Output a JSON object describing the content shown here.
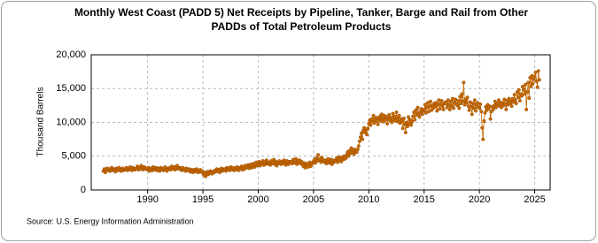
{
  "chart_data": {
    "type": "line",
    "title": [
      "Monthly West Coast (PADD 5) Net Receipts by Pipeline, Tanker, Barge and Rail from Other",
      "PADDs of Total Petroleum Products"
    ],
    "y_label": "Thousand Barrels",
    "source": "Source: U.S. Energy Information Administration",
    "xlim": [
      1984.9,
      2026.4
    ],
    "ylim": [
      0,
      20000
    ],
    "xticks": [
      1990,
      1995,
      2000,
      2005,
      2010,
      2015,
      2020,
      2025
    ],
    "yticks": [
      0,
      {
        "value": 5000,
        "label": "5,000"
      },
      {
        "value": 10000,
        "label": "10,000"
      },
      {
        "value": 15000,
        "label": "15,000"
      },
      {
        "value": 20000,
        "label": "20,000"
      }
    ],
    "grid": true,
    "series": [
      {
        "color": "#c96a00",
        "x": [
          1986.0,
          1986.08,
          1986.17,
          1986.25,
          1986.33,
          1986.42,
          1986.5,
          1986.58,
          1986.67,
          1986.75,
          1986.83,
          1986.92,
          1987.0,
          1987.08,
          1987.17,
          1987.25,
          1987.33,
          1987.42,
          1987.5,
          1987.58,
          1987.67,
          1987.75,
          1987.83,
          1987.92,
          1988.0,
          1988.08,
          1988.17,
          1988.25,
          1988.33,
          1988.42,
          1988.5,
          1988.58,
          1988.67,
          1988.75,
          1988.83,
          1988.92,
          1989.0,
          1989.08,
          1989.17,
          1989.25,
          1989.33,
          1989.42,
          1989.5,
          1989.58,
          1989.67,
          1989.75,
          1989.83,
          1989.92,
          1990.0,
          1990.08,
          1990.17,
          1990.25,
          1990.33,
          1990.42,
          1990.5,
          1990.58,
          1990.67,
          1990.75,
          1990.83,
          1990.92,
          1991.0,
          1991.08,
          1991.17,
          1991.25,
          1991.33,
          1991.42,
          1991.5,
          1991.58,
          1991.67,
          1991.75,
          1991.83,
          1991.92,
          1992.0,
          1992.08,
          1992.17,
          1992.25,
          1992.33,
          1992.42,
          1992.5,
          1992.58,
          1992.67,
          1992.75,
          1992.83,
          1992.92,
          1993.0,
          1993.08,
          1993.17,
          1993.25,
          1993.33,
          1993.42,
          1993.5,
          1993.58,
          1993.67,
          1993.75,
          1993.83,
          1993.92,
          1994.0,
          1994.08,
          1994.17,
          1994.25,
          1994.33,
          1994.42,
          1994.5,
          1994.58,
          1994.67,
          1994.75,
          1994.83,
          1994.92,
          1995.0,
          1995.08,
          1995.17,
          1995.25,
          1995.33,
          1995.42,
          1995.5,
          1995.58,
          1995.67,
          1995.75,
          1995.83,
          1995.92,
          1996.0,
          1996.08,
          1996.17,
          1996.25,
          1996.33,
          1996.42,
          1996.5,
          1996.58,
          1996.67,
          1996.75,
          1996.83,
          1996.92,
          1997.0,
          1997.08,
          1997.17,
          1997.25,
          1997.33,
          1997.42,
          1997.5,
          1997.58,
          1997.67,
          1997.75,
          1997.83,
          1997.92,
          1998.0,
          1998.08,
          1998.17,
          1998.25,
          1998.33,
          1998.42,
          1998.5,
          1998.58,
          1998.67,
          1998.75,
          1998.83,
          1998.92,
          1999.0,
          1999.08,
          1999.17,
          1999.25,
          1999.33,
          1999.42,
          1999.5,
          1999.58,
          1999.67,
          1999.75,
          1999.83,
          1999.92,
          2000.0,
          2000.08,
          2000.17,
          2000.25,
          2000.33,
          2000.42,
          2000.5,
          2000.58,
          2000.67,
          2000.75,
          2000.83,
          2000.92,
          2001.0,
          2001.08,
          2001.17,
          2001.25,
          2001.33,
          2001.42,
          2001.5,
          2001.58,
          2001.67,
          2001.75,
          2001.83,
          2001.92,
          2002.0,
          2002.08,
          2002.17,
          2002.25,
          2002.33,
          2002.42,
          2002.5,
          2002.58,
          2002.67,
          2002.75,
          2002.83,
          2002.92,
          2003.0,
          2003.08,
          2003.17,
          2003.25,
          2003.33,
          2003.42,
          2003.5,
          2003.58,
          2003.67,
          2003.75,
          2003.83,
          2003.92,
          2004.0,
          2004.08,
          2004.17,
          2004.25,
          2004.33,
          2004.42,
          2004.5,
          2004.58,
          2004.67,
          2004.75,
          2004.83,
          2004.92,
          2005.0,
          2005.08,
          2005.17,
          2005.25,
          2005.33,
          2005.42,
          2005.5,
          2005.58,
          2005.67,
          2005.75,
          2005.83,
          2005.92,
          2006.0,
          2006.08,
          2006.17,
          2006.25,
          2006.33,
          2006.42,
          2006.5,
          2006.58,
          2006.67,
          2006.75,
          2006.83,
          2006.92,
          2007.0,
          2007.08,
          2007.17,
          2007.25,
          2007.33,
          2007.42,
          2007.5,
          2007.58,
          2007.67,
          2007.75,
          2007.83,
          2007.92,
          2008.0,
          2008.08,
          2008.17,
          2008.25,
          2008.33,
          2008.42,
          2008.5,
          2008.58,
          2008.67,
          2008.75,
          2008.83,
          2008.92,
          2009.0,
          2009.08,
          2009.17,
          2009.25,
          2009.33,
          2009.42,
          2009.5,
          2009.58,
          2009.67,
          2009.75,
          2009.83,
          2009.92,
          2010.0,
          2010.08,
          2010.17,
          2010.25,
          2010.33,
          2010.42,
          2010.5,
          2010.58,
          2010.67,
          2010.75,
          2010.83,
          2010.92,
          2011.0,
          2011.08,
          2011.17,
          2011.25,
          2011.33,
          2011.42,
          2011.5,
          2011.58,
          2011.67,
          2011.75,
          2011.83,
          2011.92,
          2012.0,
          2012.08,
          2012.17,
          2012.25,
          2012.33,
          2012.42,
          2012.5,
          2012.58,
          2012.67,
          2012.75,
          2012.83,
          2012.92,
          2013.0,
          2013.08,
          2013.17,
          2013.25,
          2013.33,
          2013.42,
          2013.5,
          2013.58,
          2013.67,
          2013.75,
          2013.83,
          2013.92,
          2014.0,
          2014.08,
          2014.17,
          2014.25,
          2014.33,
          2014.42,
          2014.5,
          2014.58,
          2014.67,
          2014.75,
          2014.83,
          2014.92,
          2015.0,
          2015.08,
          2015.17,
          2015.25,
          2015.33,
          2015.42,
          2015.5,
          2015.58,
          2015.67,
          2015.75,
          2015.83,
          2015.92,
          2016.0,
          2016.08,
          2016.17,
          2016.25,
          2016.33,
          2016.42,
          2016.5,
          2016.58,
          2016.67,
          2016.75,
          2016.83,
          2016.92,
          2017.0,
          2017.08,
          2017.17,
          2017.25,
          2017.33,
          2017.42,
          2017.5,
          2017.58,
          2017.67,
          2017.75,
          2017.83,
          2017.92,
          2018.0,
          2018.08,
          2018.17,
          2018.25,
          2018.33,
          2018.42,
          2018.5,
          2018.58,
          2018.67,
          2018.75,
          2018.83,
          2018.92,
          2019.0,
          2019.08,
          2019.17,
          2019.25,
          2019.33,
          2019.42,
          2019.5,
          2019.58,
          2019.67,
          2019.75,
          2019.83,
          2019.92,
          2020.0,
          2020.08,
          2020.17,
          2020.25,
          2020.33,
          2020.42,
          2020.5,
          2020.58,
          2020.67,
          2020.75,
          2020.83,
          2020.92,
          2021.0,
          2021.08,
          2021.17,
          2021.25,
          2021.33,
          2021.42,
          2021.5,
          2021.58,
          2021.67,
          2021.75,
          2021.83,
          2021.92,
          2022.0,
          2022.08,
          2022.17,
          2022.25,
          2022.33,
          2022.42,
          2022.5,
          2022.58,
          2022.67,
          2022.75,
          2022.83,
          2022.92,
          2023.0,
          2023.08,
          2023.17,
          2023.25,
          2023.33,
          2023.42,
          2023.5,
          2023.58,
          2023.67,
          2023.75,
          2023.83,
          2023.92,
          2024.0,
          2024.08,
          2024.17,
          2024.25,
          2024.33,
          2024.42,
          2024.5,
          2024.58,
          2024.67,
          2024.75,
          2024.83,
          2024.92,
          2025.0,
          2025.08,
          2025.17,
          2025.25,
          2025.33,
          2025.42
        ],
        "values": [
          2800,
          3100,
          2600,
          3000,
          3200,
          2900,
          3100,
          2800,
          3000,
          3300,
          2900,
          3100,
          3000,
          2700,
          3200,
          3100,
          2900,
          3300,
          3000,
          2800,
          3100,
          3200,
          2900,
          3000,
          3100,
          3300,
          2900,
          3200,
          3000,
          3400,
          3100,
          2900,
          3300,
          3200,
          3000,
          3100,
          3200,
          3500,
          3000,
          3300,
          3100,
          3600,
          3200,
          3000,
          3400,
          3300,
          3100,
          3200,
          3000,
          3300,
          2800,
          3100,
          3200,
          2900,
          3400,
          3000,
          3100,
          3300,
          2900,
          3200,
          3100,
          2800,
          3300,
          3000,
          3200,
          2900,
          3100,
          3400,
          3000,
          2800,
          3200,
          3100,
          3300,
          3000,
          3500,
          3200,
          3100,
          3400,
          3000,
          3300,
          3600,
          3200,
          3100,
          3300,
          3200,
          2900,
          3300,
          3000,
          3100,
          2800,
          3200,
          3000,
          2900,
          3100,
          2700,
          3000,
          2900,
          2600,
          3000,
          2800,
          2700,
          3100,
          2900,
          2600,
          2800,
          3000,
          2700,
          2800,
          2500,
          2200,
          2600,
          2000,
          2400,
          2700,
          2300,
          2500,
          2800,
          2600,
          2400,
          2700,
          2600,
          2900,
          2700,
          3100,
          2800,
          3000,
          2600,
          2900,
          3200,
          2800,
          3000,
          3100,
          3100,
          2800,
          3300,
          3000,
          3200,
          2900,
          3400,
          3100,
          3000,
          3300,
          2900,
          3200,
          3000,
          3400,
          3100,
          2900,
          3300,
          3200,
          3500,
          3000,
          3400,
          3100,
          3600,
          3300,
          3400,
          3700,
          3200,
          3600,
          3800,
          3300,
          3500,
          3900,
          3400,
          3700,
          4100,
          3600,
          3800,
          4200,
          3600,
          4000,
          3900,
          4300,
          3700,
          4100,
          3800,
          4400,
          3900,
          4000,
          4100,
          3700,
          4300,
          3900,
          4000,
          4500,
          3800,
          4200,
          3600,
          4100,
          3900,
          4300,
          4000,
          3800,
          4200,
          3900,
          4400,
          4100,
          3700,
          4300,
          4000,
          3800,
          4200,
          4100,
          4200,
          3900,
          4500,
          4100,
          4000,
          4600,
          3800,
          4300,
          4100,
          4400,
          3900,
          4200,
          3800,
          3500,
          4000,
          3300,
          3600,
          3900,
          3400,
          3700,
          4100,
          3500,
          3800,
          4000,
          4200,
          4500,
          4000,
          4700,
          4300,
          5200,
          4400,
          4600,
          4100,
          4800,
          4500,
          4300,
          4100,
          4400,
          3900,
          4300,
          4600,
          4000,
          4200,
          4500,
          3800,
          4400,
          4100,
          4300,
          4300,
          4700,
          4100,
          4600,
          4900,
          4400,
          4200,
          4800,
          4500,
          5000,
          4600,
          4700,
          5200,
          5600,
          5000,
          5800,
          5400,
          6200,
          5500,
          5900,
          5300,
          6000,
          5700,
          5600,
          6000,
          6500,
          7200,
          7800,
          8400,
          7500,
          8800,
          9200,
          8500,
          9000,
          8200,
          9100,
          9800,
          10300,
          9600,
          10500,
          10100,
          11000,
          9900,
          10400,
          10700,
          10200,
          9700,
          10600,
          10900,
          10200,
          11200,
          10600,
          10100,
          11000,
          10400,
          10800,
          9800,
          10500,
          11100,
          10300,
          10700,
          10000,
          11300,
          10400,
          10900,
          10200,
          11500,
          10600,
          10100,
          11000,
          9900,
          10500,
          10200,
          9100,
          10600,
          9700,
          8500,
          10000,
          9400,
          10800,
          9800,
          10400,
          9600,
          10100,
          10900,
          11500,
          10400,
          11800,
          11100,
          12200,
          11300,
          10800,
          11600,
          12000,
          11200,
          11700,
          11900,
          12600,
          11400,
          12200,
          12900,
          11600,
          12400,
          13100,
          11800,
          12500,
          12100,
          12800,
          12300,
          12900,
          11700,
          12600,
          13300,
          12000,
          12700,
          13200,
          12400,
          11900,
          12800,
          13000,
          12800,
          12200,
          13300,
          12600,
          11900,
          13100,
          12400,
          13500,
          12100,
          12900,
          13400,
          12700,
          12500,
          13200,
          12100,
          13800,
          12800,
          14200,
          13100,
          15900,
          12600,
          13400,
          12900,
          13700,
          12400,
          11800,
          13000,
          12300,
          11200,
          12800,
          12100,
          13300,
          11700,
          12600,
          12900,
          12200,
          12100,
          12700,
          11600,
          9200,
          7500,
          10200,
          11400,
          12300,
          11800,
          12600,
          12000,
          12400,
          10500,
          11600,
          12300,
          11900,
          12500,
          13100,
          12200,
          12800,
          12600,
          13300,
          12400,
          12900,
          12200,
          12900,
          12500,
          13400,
          12700,
          11900,
          13200,
          12600,
          13500,
          12800,
          13100,
          12400,
          13500,
          13000,
          14100,
          13300,
          12800,
          14500,
          13700,
          14800,
          13200,
          14200,
          13900,
          15300,
          14800,
          14200,
          15600,
          11900,
          14500,
          15900,
          13600,
          16600,
          15300,
          16900,
          15700,
          16400,
          16800,
          17400,
          16100,
          15200,
          17600,
          16300
        ]
      }
    ]
  }
}
